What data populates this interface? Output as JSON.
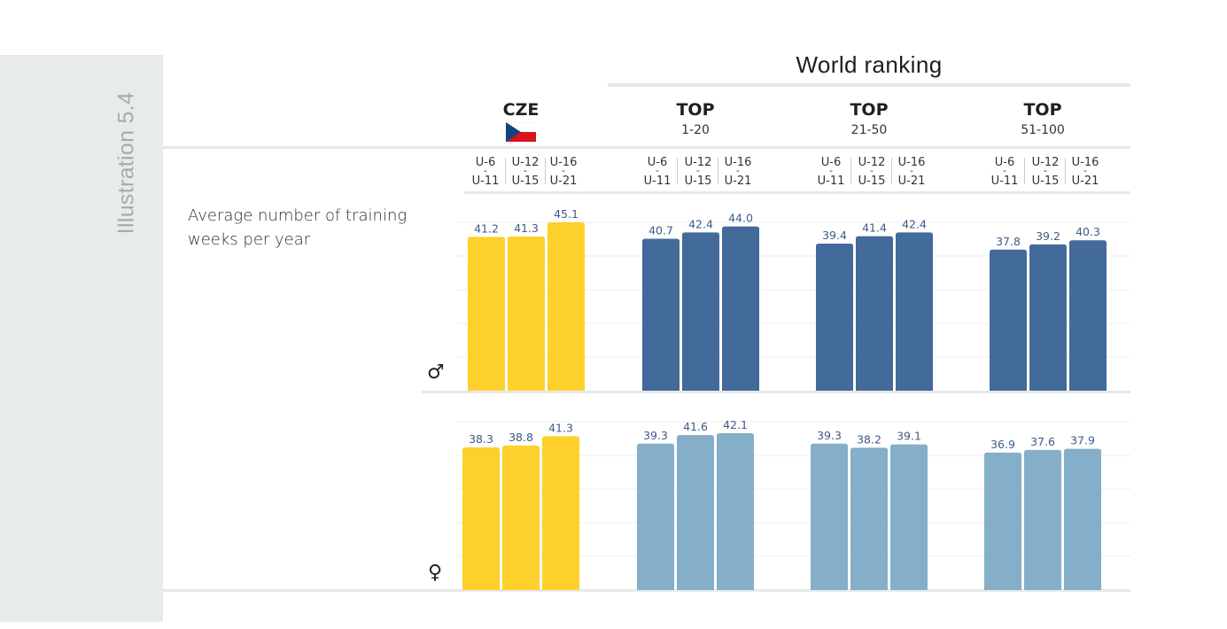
{
  "side_label": "Illustration 5.4",
  "world_ranking_title": "World ranking",
  "metric_label": "Average number of training weeks per year",
  "groups": [
    {
      "title": "CZE",
      "subtitle": "",
      "flag": "czech-flag"
    },
    {
      "title": "TOP",
      "subtitle": "1-20"
    },
    {
      "title": "TOP",
      "subtitle": "21-50"
    },
    {
      "title": "TOP",
      "subtitle": "51-100"
    }
  ],
  "age_categories": [
    {
      "top": "U-6",
      "sep": "-",
      "bottom": "U-11"
    },
    {
      "top": "U-12",
      "sep": "-",
      "bottom": "U-15"
    },
    {
      "top": "U-16",
      "sep": "-",
      "bottom": "U-21"
    }
  ],
  "gender_symbols": {
    "male": "♂",
    "female": "♀"
  },
  "colors": {
    "cze": "#fdd02b",
    "male_top": "#426a9a",
    "female_top": "#85aec8",
    "value_label": "#3d5a86",
    "band": "#e8ebec",
    "grid": "#e6e8e9"
  },
  "chart_data": [
    {
      "type": "bar",
      "panel": "male",
      "categories": [
        "CZE",
        "TOP 1-20",
        "TOP 21-50",
        "TOP 51-100"
      ],
      "series": [
        {
          "name": "U-6 - U-11",
          "values": [
            41.2,
            40.7,
            39.4,
            37.8
          ]
        },
        {
          "name": "U-12 - U-15",
          "values": [
            41.3,
            42.4,
            41.4,
            39.2
          ]
        },
        {
          "name": "U-16 - U-21",
          "values": [
            45.1,
            44.0,
            42.4,
            40.3
          ]
        }
      ],
      "grid": true
    },
    {
      "type": "bar",
      "panel": "female",
      "categories": [
        "CZE",
        "TOP 1-20",
        "TOP 21-50",
        "TOP 51-100"
      ],
      "series": [
        {
          "name": "U-6 - U-11",
          "values": [
            38.3,
            39.3,
            39.3,
            36.9
          ]
        },
        {
          "name": "U-12 - U-15",
          "values": [
            38.8,
            41.6,
            38.2,
            37.6
          ]
        },
        {
          "name": "U-16 - U-21",
          "values": [
            41.3,
            42.1,
            39.1,
            37.9
          ]
        }
      ],
      "grid": true
    }
  ]
}
